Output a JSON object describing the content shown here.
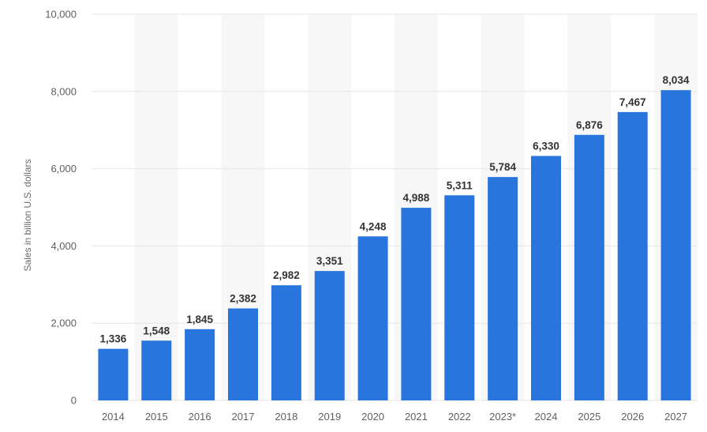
{
  "chart_data": {
    "type": "bar",
    "title": "",
    "xlabel": "",
    "ylabel": "Sales in billion U.S. dollars",
    "categories": [
      "2014",
      "2015",
      "2016",
      "2017",
      "2018",
      "2019",
      "2020",
      "2021",
      "2022",
      "2023*",
      "2024",
      "2025",
      "2026",
      "2027"
    ],
    "values": [
      1336,
      1548,
      1845,
      2382,
      2982,
      3351,
      4248,
      4988,
      5311,
      5784,
      6330,
      6876,
      7467,
      8034
    ],
    "value_labels": [
      "1,336",
      "1,548",
      "1,845",
      "2,382",
      "2,982",
      "3,351",
      "4,248",
      "4,988",
      "5,311",
      "5,784",
      "6,330",
      "6,876",
      "7,467",
      "8,034"
    ],
    "ylim": [
      0,
      10000
    ],
    "yticks": [
      0,
      2000,
      4000,
      6000,
      8000,
      10000
    ],
    "ytick_labels": [
      "0",
      "2,000",
      "4,000",
      "6,000",
      "8,000",
      "10,000"
    ],
    "grid": true,
    "legend": "none",
    "colors": {
      "bar": "#2876dd",
      "grid": "#e6e6e6",
      "band": "#f7f7f7"
    }
  }
}
